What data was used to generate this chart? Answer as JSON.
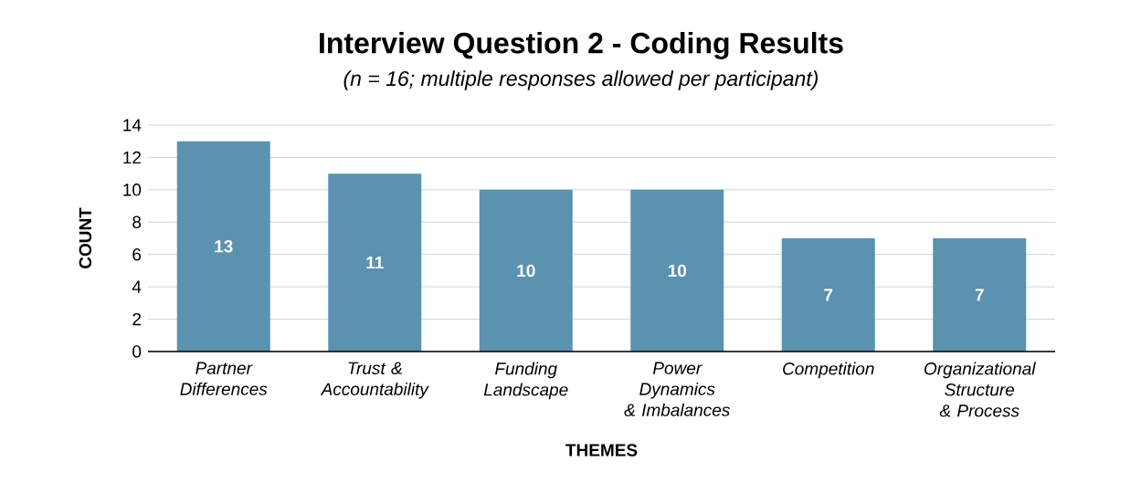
{
  "chart_data": {
    "type": "bar",
    "title": "Interview Question 2 - Coding Results",
    "subtitle": "*(n = 16; multiple responses allowed per participant)*",
    "xlabel": "THEMES",
    "ylabel": "COUNT",
    "categories": [
      "Partner Differences",
      "Trust & Accountability",
      "Funding Landscape",
      "Power Dynamics & Imbalances",
      "Competition",
      "Organizational Structure & Process"
    ],
    "values": [
      13,
      11,
      10,
      10,
      7,
      7
    ],
    "color": "#5a92af",
    "ylim": [
      0,
      14
    ],
    "yticks": [
      0,
      2,
      4,
      6,
      8,
      10,
      12,
      14
    ],
    "grid": "y",
    "data_labels": true
  }
}
